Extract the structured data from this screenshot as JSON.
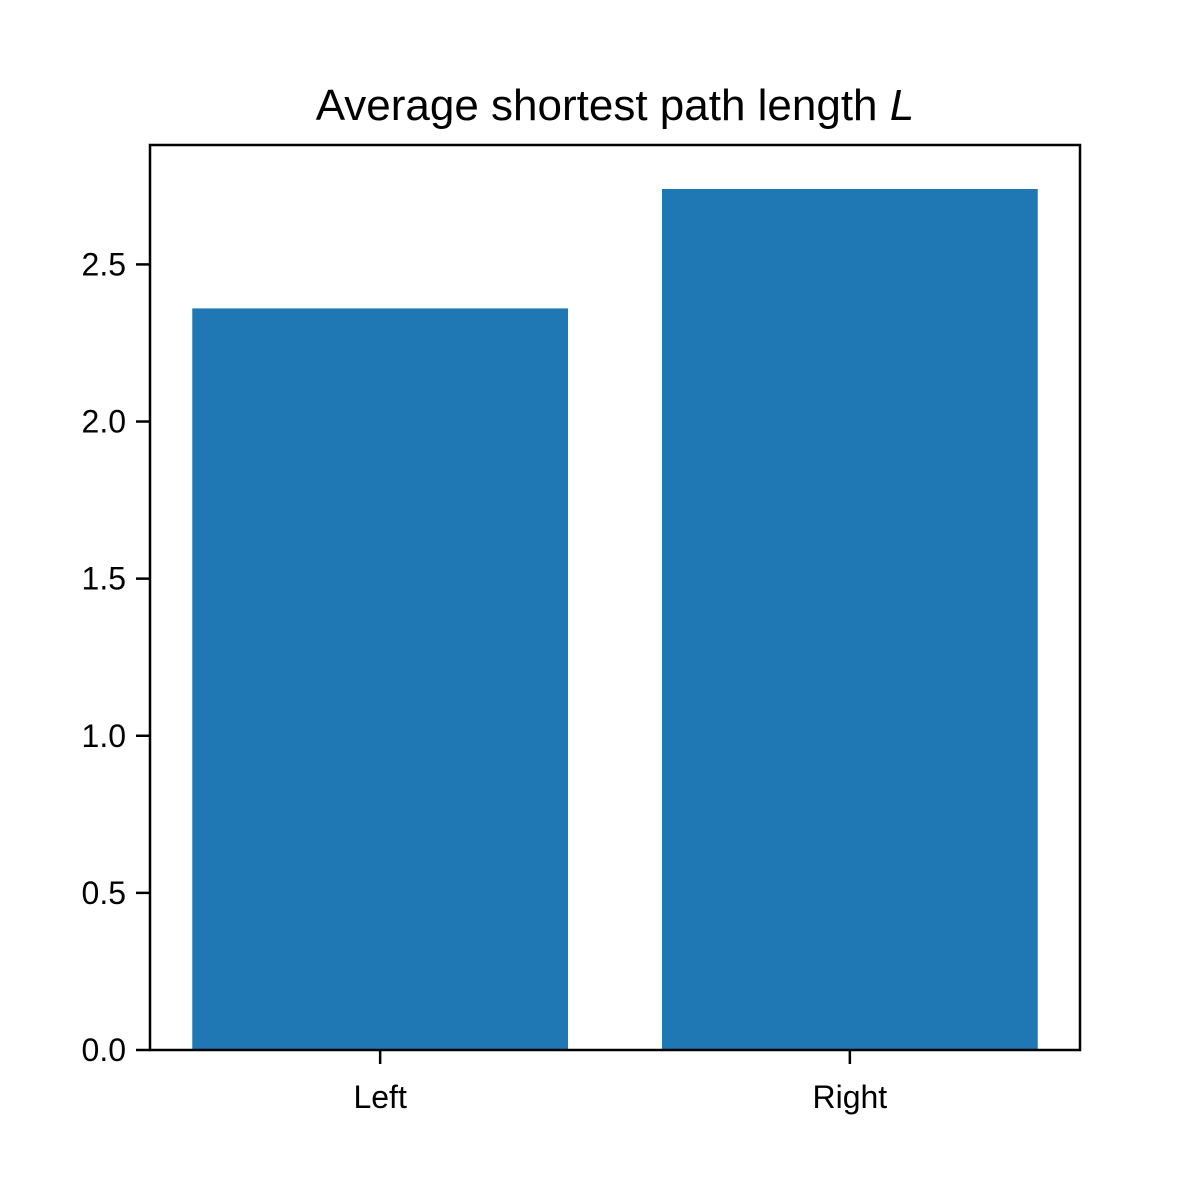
{
  "chart_data": {
    "type": "bar",
    "title": "Average shortest path length ",
    "title_symbol": "L",
    "xlabel": "",
    "ylabel": "",
    "categories": [
      "Left",
      "Right"
    ],
    "values": [
      2.36,
      2.74
    ],
    "ylim": [
      0,
      2.88
    ],
    "yticks": [
      0.0,
      0.5,
      1.0,
      1.5,
      2.0,
      2.5
    ],
    "ytick_labels": [
      "0.0",
      "0.5",
      "1.0",
      "1.5",
      "2.0",
      "2.5"
    ],
    "grid": false,
    "legend": "none",
    "bar_color": "#1f77b4"
  }
}
